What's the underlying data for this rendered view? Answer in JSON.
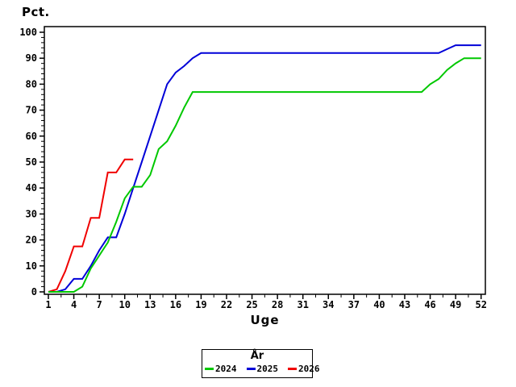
{
  "page": {
    "background": "#ffffff",
    "text_color": "#000000"
  },
  "chart_data": {
    "type": "line",
    "title": "",
    "ylabel": "Pct.",
    "xlabel": "Uge",
    "xlim": [
      1,
      52
    ],
    "ylim": [
      0,
      100
    ],
    "grid": false,
    "x_ticks_major": [
      1,
      4,
      7,
      10,
      13,
      16,
      19,
      22,
      25,
      28,
      31,
      34,
      37,
      40,
      43,
      46,
      49,
      52
    ],
    "x_minor_offset": 1.5,
    "y_ticks_major": [
      0,
      10,
      20,
      30,
      40,
      50,
      60,
      70,
      80,
      90,
      100
    ],
    "y_minor_step": 2,
    "axis_color": "#000000",
    "legend": {
      "title": "År",
      "position": "bottom-center"
    },
    "series": [
      {
        "name": "2024",
        "color": "#00c800",
        "points": [
          [
            1,
            0
          ],
          [
            2,
            0
          ],
          [
            3,
            0
          ],
          [
            4,
            0
          ],
          [
            5,
            2
          ],
          [
            6,
            9
          ],
          [
            7,
            14
          ],
          [
            8,
            19
          ],
          [
            9,
            27
          ],
          [
            10,
            36
          ],
          [
            11,
            40.5
          ],
          [
            12,
            40.5
          ],
          [
            13,
            45
          ],
          [
            14,
            55
          ],
          [
            15,
            58
          ],
          [
            16,
            64
          ],
          [
            17,
            71
          ],
          [
            18,
            77
          ],
          [
            19,
            77
          ],
          [
            45,
            77
          ],
          [
            46,
            80
          ],
          [
            47,
            82
          ],
          [
            48,
            85.5
          ],
          [
            49,
            88
          ],
          [
            50,
            90
          ],
          [
            51,
            90
          ],
          [
            52,
            90
          ]
        ]
      },
      {
        "name": "2025",
        "color": "#0000d8",
        "points": [
          [
            1,
            0
          ],
          [
            2,
            0
          ],
          [
            3,
            1
          ],
          [
            4,
            5
          ],
          [
            5,
            5
          ],
          [
            6,
            10
          ],
          [
            7,
            16
          ],
          [
            8,
            21
          ],
          [
            9,
            21
          ],
          [
            10,
            30
          ],
          [
            11,
            40
          ],
          [
            12,
            50
          ],
          [
            13,
            60
          ],
          [
            14,
            70
          ],
          [
            15,
            80
          ],
          [
            16,
            84.5
          ],
          [
            17,
            87
          ],
          [
            18,
            90
          ],
          [
            19,
            92
          ],
          [
            20,
            92
          ],
          [
            47,
            92
          ],
          [
            48,
            93.5
          ],
          [
            49,
            95
          ],
          [
            50,
            95
          ],
          [
            51,
            95
          ],
          [
            52,
            95
          ]
        ]
      },
      {
        "name": "2026",
        "color": "#f00000",
        "points": [
          [
            1,
            0
          ],
          [
            2,
            1
          ],
          [
            3,
            8
          ],
          [
            4,
            17.5
          ],
          [
            5,
            17.5
          ],
          [
            6,
            28.5
          ],
          [
            7,
            28.5
          ],
          [
            8,
            46
          ],
          [
            9,
            46
          ],
          [
            10,
            51
          ],
          [
            11,
            51
          ]
        ]
      }
    ]
  }
}
